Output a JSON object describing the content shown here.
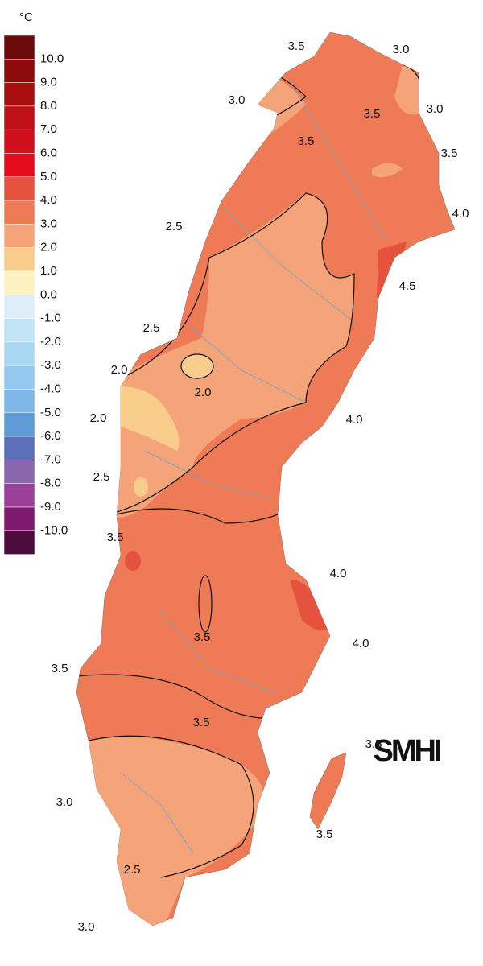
{
  "legend": {
    "unit": "°C",
    "colors": [
      "#6a0a0a",
      "#8c0b0b",
      "#a8100f",
      "#bf1018",
      "#d0101c",
      "#e30b1c",
      "#e5533e",
      "#ee7a56",
      "#f5a47a",
      "#f9cd8c",
      "#fdf3c2",
      "#ddeefa",
      "#c3e4f5",
      "#a9d8f2",
      "#94c8ee",
      "#7fb8e6",
      "#5f9bd6",
      "#5a70b8",
      "#8a66ad",
      "#9c3f98",
      "#7d1a6e",
      "#4d0a3c"
    ],
    "labels": [
      "10.0",
      "9.0",
      "8.0",
      "7.0",
      "6.0",
      "5.0",
      "4.0",
      "3.0",
      "2.0",
      "1.0",
      "0.0",
      "-1.0",
      "-2.0",
      "-3.0",
      "-4.0",
      "-5.0",
      "-6.0",
      "-7.0",
      "-8.0",
      "-9.0",
      "-10.0"
    ]
  },
  "contour_labels": [
    "3.5",
    "3.0",
    "3.0",
    "3.5",
    "3.0",
    "3.5",
    "3.5",
    "4.0",
    "2.5",
    "4.5",
    "2.5",
    "2.0",
    "2.0",
    "2.0",
    "4.0",
    "2.5",
    "3.5",
    "4.0",
    "3.5",
    "4.0",
    "3.5",
    "3.5",
    "3.5",
    "3.0",
    "3.5",
    "2.5",
    "3.0"
  ],
  "logo": "SMHI"
}
